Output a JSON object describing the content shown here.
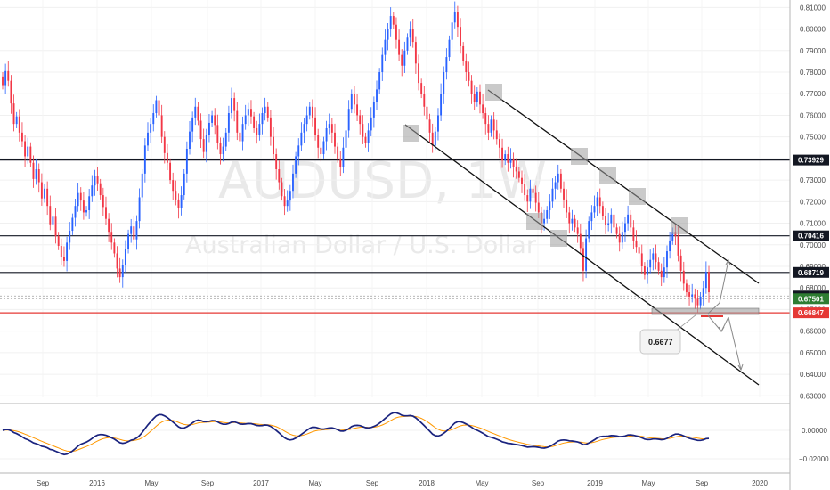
{
  "chart_data": {
    "type": "candlestick",
    "symbol": "AUDUSD",
    "interval": "1W",
    "subtitle": "Australian Dollar / U.S. Dollar",
    "y_ticks": [
      "0.81000",
      "0.80000",
      "0.79000",
      "0.78000",
      "0.77000",
      "0.76000",
      "0.75000",
      "0.74000",
      "0.73000",
      "0.72000",
      "0.71000",
      "0.70000",
      "0.69000",
      "0.68000",
      "0.67000",
      "0.66000",
      "0.65000",
      "0.64000",
      "0.63000"
    ],
    "ylim": [
      0.6293,
      0.8118
    ],
    "x_labels": [
      "Sep",
      "2016",
      "May",
      "Sep",
      "2017",
      "May",
      "Sep",
      "2018",
      "May",
      "Sep",
      "2019",
      "May",
      "Sep",
      "2020"
    ],
    "x_label_dates": [
      "2015-09",
      "2016-01",
      "2016-05",
      "2016-09",
      "2017-01",
      "2017-05",
      "2017-09",
      "2018-01",
      "2018-05",
      "2018-09",
      "2019-01",
      "2019-05",
      "2019-09",
      "2020-01"
    ],
    "price_lines": [
      {
        "label": "0.73929",
        "value": 0.73929,
        "color": "#131722"
      },
      {
        "label": "0.70416",
        "value": 0.70416,
        "color": "#131722"
      },
      {
        "label": "0.68719",
        "value": 0.68719,
        "color": "#131722"
      },
      {
        "label": "0.67626",
        "value": 0.67626,
        "color": "#131722"
      },
      {
        "label": "0.67501",
        "value": 0.67501,
        "color": "#2e7d32"
      },
      {
        "label": "0.66847",
        "value": 0.66847,
        "color": "#e53935"
      }
    ],
    "callout": "0.6677",
    "colors": {
      "up": "#2962ff",
      "down": "#f23645",
      "macd": "#1a237e",
      "signal": "#ff9800",
      "support": "#e53935"
    },
    "closes": [
      0.774,
      0.7805,
      0.776,
      0.7655,
      0.756,
      0.7595,
      0.752,
      0.748,
      0.741,
      0.7455,
      0.738,
      0.7305,
      0.735,
      0.729,
      0.7215,
      0.726,
      0.718,
      0.7095,
      0.713,
      0.704,
      0.6995,
      0.6945,
      0.6925,
      0.701,
      0.7065,
      0.7125,
      0.718,
      0.724,
      0.7205,
      0.715,
      0.716,
      0.7225,
      0.7275,
      0.732,
      0.7285,
      0.723,
      0.7175,
      0.712,
      0.706,
      0.701,
      0.696,
      0.689,
      0.685,
      0.6905,
      0.698,
      0.705,
      0.7085,
      0.7025,
      0.711,
      0.722,
      0.733,
      0.746,
      0.752,
      0.756,
      0.761,
      0.767,
      0.76,
      0.75,
      0.7425,
      0.738,
      0.73,
      0.725,
      0.721,
      0.717,
      0.723,
      0.733,
      0.7445,
      0.7525,
      0.759,
      0.764,
      0.7575,
      0.749,
      0.743,
      0.751,
      0.7565,
      0.76,
      0.7555,
      0.747,
      0.742,
      0.7455,
      0.752,
      0.761,
      0.768,
      0.762,
      0.752,
      0.748,
      0.756,
      0.76,
      0.763,
      0.7595,
      0.754,
      0.751,
      0.756,
      0.761,
      0.764,
      0.759,
      0.75,
      0.742,
      0.735,
      0.729,
      0.7225,
      0.718,
      0.7205,
      0.725,
      0.733,
      0.741,
      0.746,
      0.752,
      0.756,
      0.76,
      0.764,
      0.759,
      0.751,
      0.745,
      0.742,
      0.748,
      0.754,
      0.756,
      0.752,
      0.7455,
      0.74,
      0.736,
      0.745,
      0.753,
      0.763,
      0.77,
      0.765,
      0.76,
      0.756,
      0.75,
      0.747,
      0.753,
      0.759,
      0.766,
      0.772,
      0.78,
      0.788,
      0.795,
      0.8,
      0.806,
      0.802,
      0.795,
      0.788,
      0.783,
      0.79,
      0.796,
      0.8,
      0.794,
      0.784,
      0.775,
      0.77,
      0.764,
      0.758,
      0.752,
      0.746,
      0.7525,
      0.76,
      0.77,
      0.78,
      0.787,
      0.795,
      0.803,
      0.808,
      0.801,
      0.792,
      0.785,
      0.78,
      0.776,
      0.77,
      0.766,
      0.771,
      0.765,
      0.761,
      0.756,
      0.752,
      0.758,
      0.753,
      0.749,
      0.745,
      0.739,
      0.742,
      0.738,
      0.74,
      0.736,
      0.734,
      0.731,
      0.728,
      0.723,
      0.72,
      0.726,
      0.724,
      0.7195,
      0.715,
      0.71,
      0.712,
      0.716,
      0.72,
      0.726,
      0.729,
      0.733,
      0.726,
      0.721,
      0.715,
      0.71,
      0.712,
      0.708,
      0.705,
      0.6985,
      0.688,
      0.703,
      0.711,
      0.715,
      0.718,
      0.722,
      0.718,
      0.7135,
      0.709,
      0.71,
      0.714,
      0.708,
      0.705,
      0.701,
      0.706,
      0.71,
      0.714,
      0.708,
      0.702,
      0.699,
      0.696,
      0.69,
      0.686,
      0.6895,
      0.693,
      0.696,
      0.692,
      0.688,
      0.685,
      0.6895,
      0.697,
      0.702,
      0.706,
      0.704,
      0.695,
      0.688,
      0.682,
      0.678,
      0.676,
      0.677,
      0.675,
      0.672,
      0.676,
      0.68,
      0.6875,
      0.678
    ]
  }
}
